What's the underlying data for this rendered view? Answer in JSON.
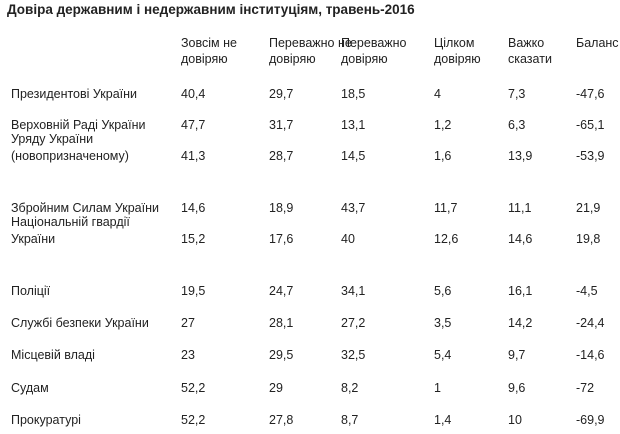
{
  "title": "Довіра державним і недержавним інституціям, травень-2016",
  "columns": [
    {
      "line1": "Зовсім не",
      "line2": "довіряю"
    },
    {
      "line1": "Переважно не",
      "line2": "довіряю"
    },
    {
      "line1": "Переважно",
      "line2": "довіряю"
    },
    {
      "line1": "Цілком",
      "line2": "довіряю"
    },
    {
      "line1": "Важко",
      "line2": "сказати"
    },
    {
      "line1": "Баланс",
      "line2": ""
    }
  ],
  "rows": [
    {
      "label": [
        "Президентові України"
      ],
      "values": [
        "40,4",
        "29,7",
        "18,5",
        "4",
        "7,3",
        "-47,6"
      ]
    },
    {
      "label": [
        "Верховній Раді України"
      ],
      "values": [
        "47,7",
        "31,7",
        "13,1",
        "1,2",
        "6,3",
        "-65,1"
      ]
    },
    {
      "label": [
        "Уряду України",
        "(новопризначеному)"
      ],
      "values": [
        "41,3",
        "28,7",
        "14,5",
        "1,6",
        "13,9",
        "-53,9"
      ]
    },
    {
      "label": [
        "Збройним Силам України"
      ],
      "values": [
        "14,6",
        "18,9",
        "43,7",
        "11,7",
        "11,1",
        "21,9"
      ]
    },
    {
      "label": [
        "Національній гвардії",
        "України"
      ],
      "values": [
        "15,2",
        "17,6",
        "40",
        "12,6",
        "14,6",
        "19,8"
      ]
    },
    {
      "label": [
        "Поліції"
      ],
      "values": [
        "19,5",
        "24,7",
        "34,1",
        "5,6",
        "16,1",
        "-4,5"
      ]
    },
    {
      "label": [
        "Службі безпеки України"
      ],
      "values": [
        "27",
        "28,1",
        "27,2",
        "3,5",
        "14,2",
        "-24,4"
      ]
    },
    {
      "label": [
        "Місцевій владі"
      ],
      "values": [
        "23",
        "29,5",
        "32,5",
        "5,4",
        "9,7",
        "-14,6"
      ]
    },
    {
      "label": [
        "Судам"
      ],
      "values": [
        "52,2",
        "29",
        "8,2",
        "1",
        "9,6",
        "-72"
      ]
    },
    {
      "label": [
        "Прокуратурі"
      ],
      "values": [
        "52,2",
        "27,8",
        "8,7",
        "1,4",
        "10",
        "-69,9"
      ]
    }
  ]
}
